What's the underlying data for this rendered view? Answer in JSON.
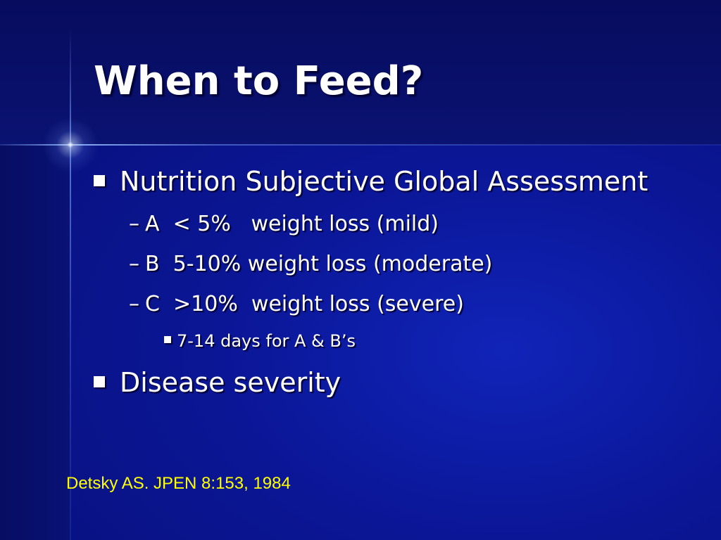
{
  "slide": {
    "title": "When to Feed?",
    "bullets": [
      {
        "text": "Nutrition Subjective Global Assessment",
        "subitems": [
          {
            "marker": "–",
            "text": "A  < 5%   weight loss (mild)"
          },
          {
            "marker": "–",
            "text": "B  5-10% weight loss (moderate)"
          },
          {
            "marker": "–",
            "text": "C  >10%  weight loss (severe)"
          }
        ],
        "subsubitem": "7-14 days for A & B’s"
      },
      {
        "text": "Disease severity"
      }
    ],
    "citation": "Detsky AS. JPEN 8:153, 1984"
  },
  "colors": {
    "background": "#0b1696",
    "title_text": "#ffffff",
    "body_text": "#ffffff",
    "citation_text": "#ffff00"
  }
}
